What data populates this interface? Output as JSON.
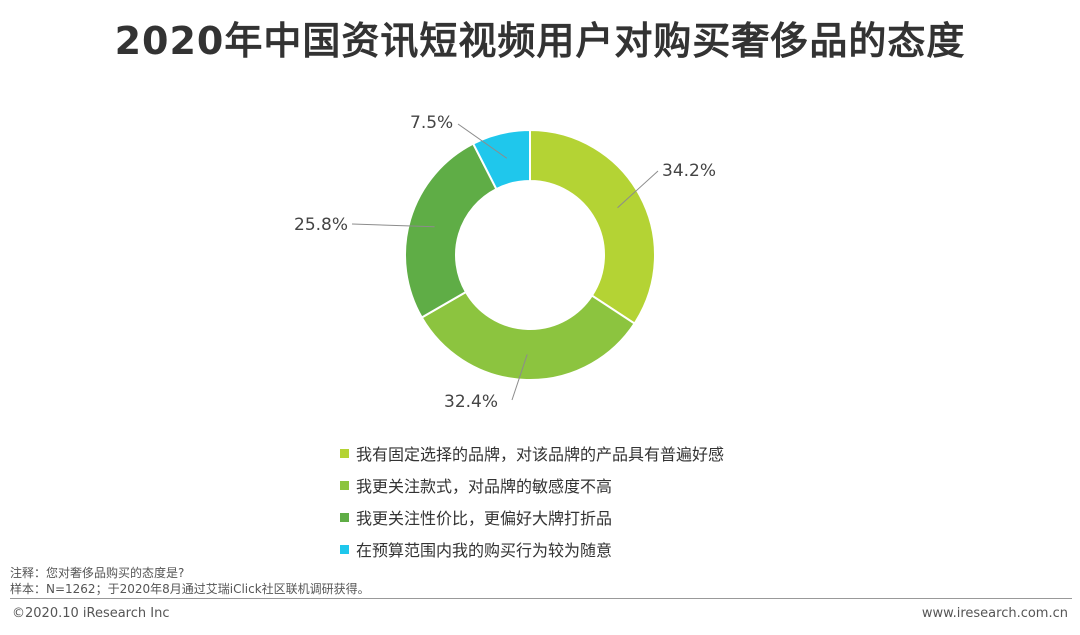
{
  "chart_data": {
    "type": "pie",
    "title": "2020年中国资讯短视频用户对购买奢侈品的态度",
    "donut": true,
    "legend_position": "bottom",
    "slices": [
      {
        "label": "我有固定选择的品牌，对该品牌的产品具有普遍好感",
        "value": 34.2,
        "value_label": "34.2%",
        "color": "#b4d334"
      },
      {
        "label": "我更关注款式，对品牌的敏感度不高",
        "value": 32.4,
        "value_label": "32.4%",
        "color": "#8cc43f"
      },
      {
        "label": "我更关注性价比，更偏好大牌打折品",
        "value": 25.8,
        "value_label": "25.8%",
        "color": "#5fad46"
      },
      {
        "label": "在预算范围内我的购买行为较为随意",
        "value": 7.5,
        "value_label": "7.5%",
        "color": "#1fc7ec"
      }
    ]
  },
  "notes": {
    "line1": "注释：您对奢侈品购买的态度是?",
    "line2": "样本：N=1262；于2020年8月通过艾瑞iClick社区联机调研获得。"
  },
  "footer": {
    "copyright": "©2020.10 iResearch Inc",
    "website": "www.iresearch.com.cn"
  }
}
